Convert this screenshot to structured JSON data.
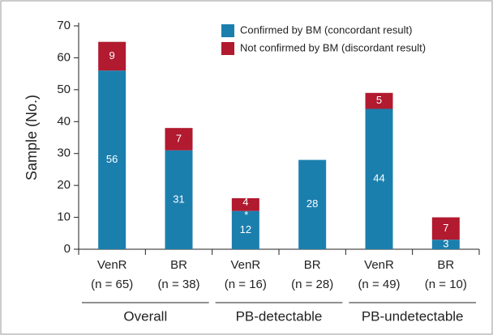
{
  "chart_data": {
    "type": "stacked_bar",
    "y_label": "Sample (No.)",
    "categories": [
      "VenR",
      "BR",
      "VenR",
      "BR",
      "VenR",
      "BR"
    ],
    "category_sublabels": [
      "(n = 65)",
      "(n = 38)",
      "(n = 16)",
      "(n = 28)",
      "(n = 49)",
      "(n = 10)"
    ],
    "groups": [
      "Overall",
      "PB-detectable",
      "PB-undetectable"
    ],
    "series": [
      {
        "name": "Confirmed by BM (concordant result)",
        "color": "#1b7fae",
        "values": [
          56,
          31,
          12,
          28,
          44,
          3
        ]
      },
      {
        "name": "Not confirmed by BM (discordant result)",
        "color": "#b11a2f",
        "values": [
          9,
          7,
          4,
          null,
          5,
          7
        ]
      }
    ],
    "annotation": "*",
    "ylim": [
      0,
      70
    ],
    "yticks": [
      0,
      10,
      20,
      30,
      40,
      50,
      60,
      70
    ],
    "grid": false,
    "legend": "top-right"
  }
}
